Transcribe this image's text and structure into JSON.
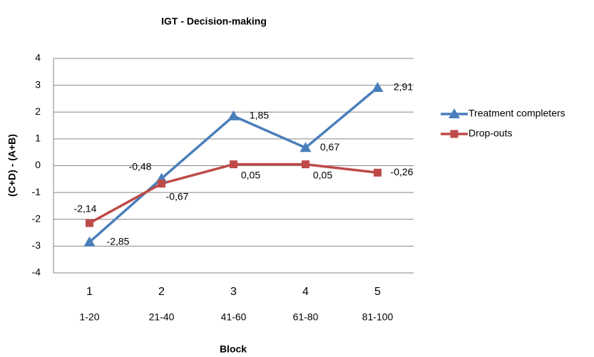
{
  "chart_data": {
    "type": "line",
    "title": "IGT - Decision-making",
    "x_label": "Block",
    "y_label": "(C+D) - (A+B)",
    "categories": [
      "1",
      "2",
      "3",
      "4",
      "5"
    ],
    "category_ranges": [
      "1-20",
      "21-40",
      "41-60",
      "61-80",
      "81-100"
    ],
    "series": [
      {
        "name": "Treatment completers",
        "color": "#4a7ebb",
        "marker": "triangle",
        "values": [
          -2.85,
          -0.48,
          1.85,
          0.67,
          2.91
        ],
        "value_labels": [
          "-2,85",
          "-0,48",
          "1,85",
          "0,67",
          "2,91"
        ]
      },
      {
        "name": "Drop-outs",
        "color": "#be4b48",
        "marker": "square",
        "values": [
          -2.14,
          -0.67,
          0.05,
          0.05,
          -0.26
        ],
        "value_labels": [
          "-2,14",
          "-0,67",
          "0,05",
          "0,05",
          "-0,26"
        ]
      }
    ],
    "ylim": [
      -4,
      4
    ],
    "yticks": [
      -4,
      -3,
      -2,
      -1,
      0,
      1,
      2,
      3,
      4
    ],
    "grid": true,
    "legend": "right"
  }
}
